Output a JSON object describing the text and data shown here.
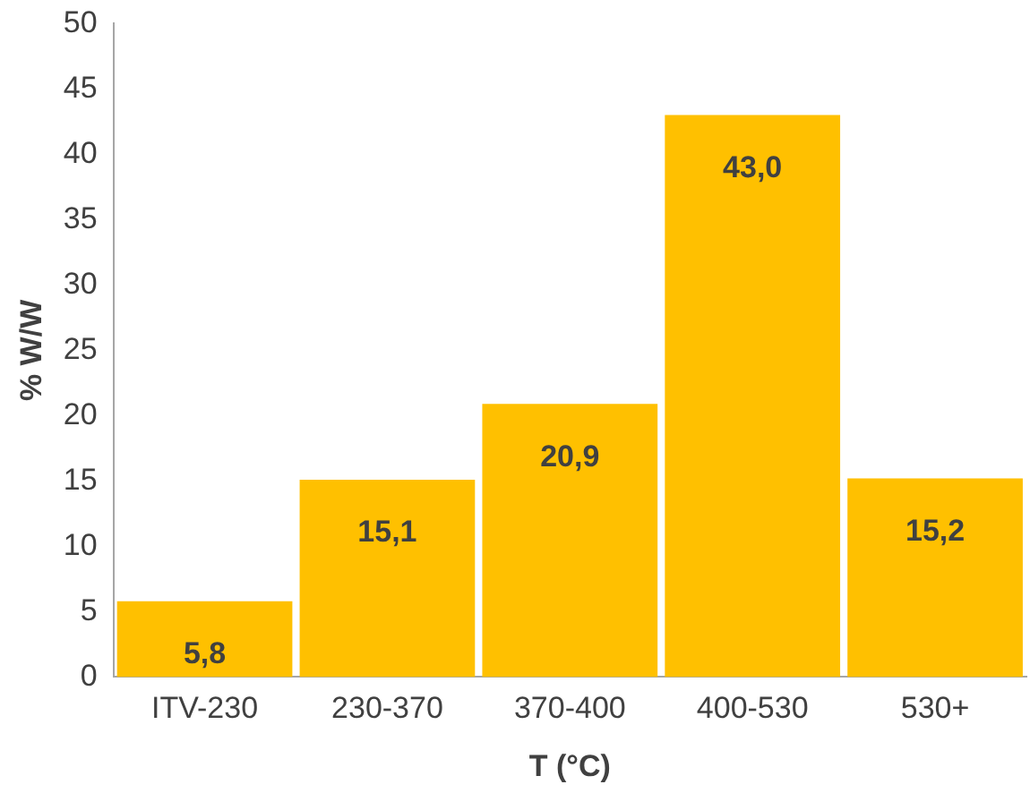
{
  "chart_data": {
    "type": "bar",
    "xlabel": "T (°C)",
    "ylabel": "% W/W",
    "categories": [
      "ITV-230",
      "230-370",
      "370-400",
      "400-530",
      "530+"
    ],
    "values": [
      5.8,
      15.1,
      20.9,
      43.0,
      15.2
    ],
    "value_labels": [
      "5,8",
      "15,1",
      "20,9",
      "43,0",
      "15,2"
    ],
    "color": "#ffc000",
    "ylim": [
      0,
      50
    ],
    "yticks": [
      0,
      5,
      10,
      15,
      20,
      25,
      30,
      35,
      40,
      45,
      50
    ],
    "grid": false,
    "legend": false
  }
}
